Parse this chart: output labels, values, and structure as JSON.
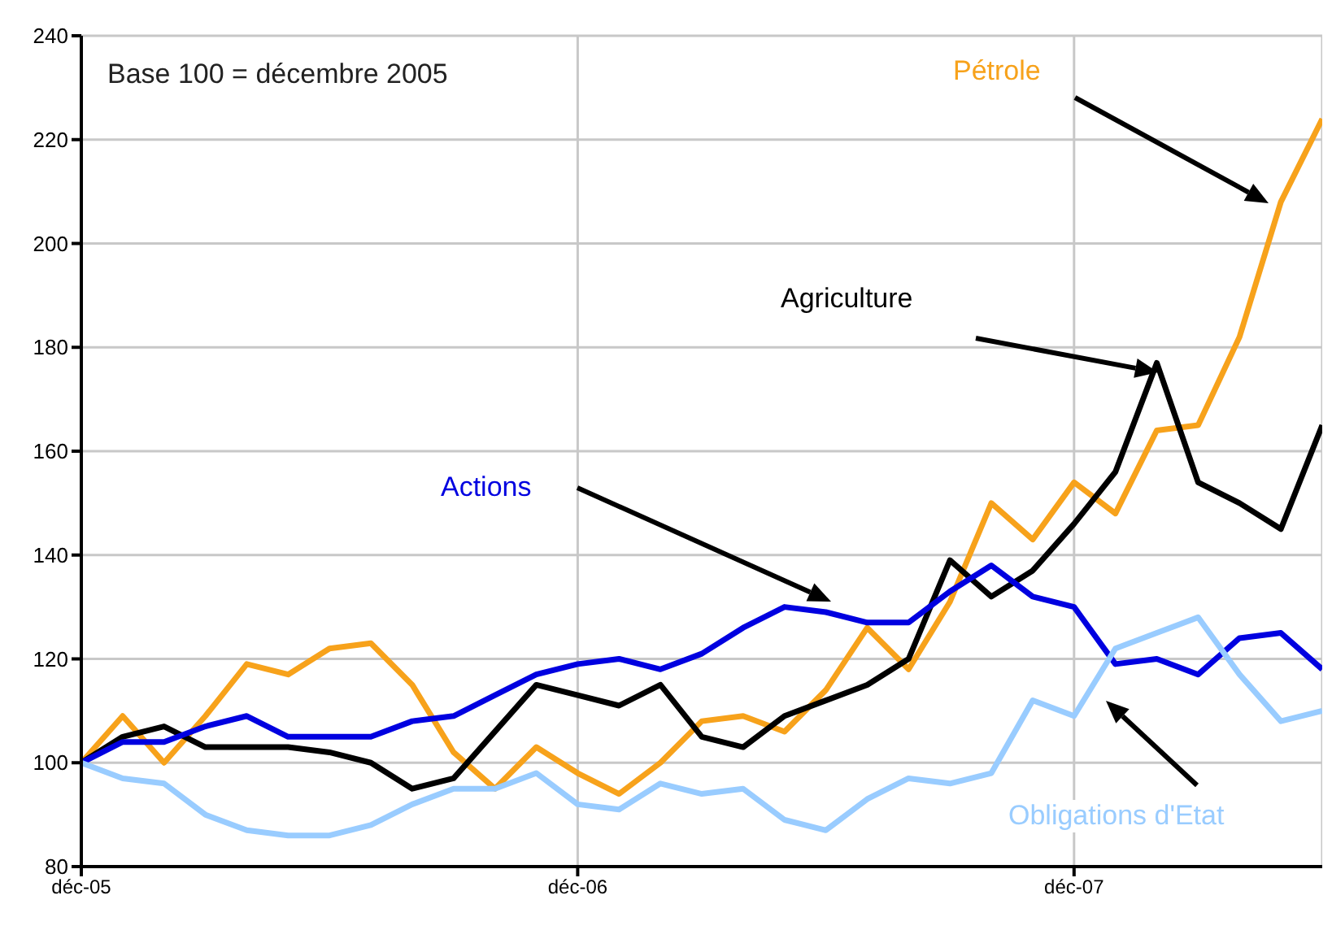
{
  "chart_data": {
    "type": "line",
    "x": [
      "2005-12",
      "2006-01",
      "2006-02",
      "2006-03",
      "2006-04",
      "2006-05",
      "2006-06",
      "2006-07",
      "2006-08",
      "2006-09",
      "2006-10",
      "2006-11",
      "2006-12",
      "2007-01",
      "2007-02",
      "2007-03",
      "2007-04",
      "2007-05",
      "2007-06",
      "2007-07",
      "2007-08",
      "2007-09",
      "2007-10",
      "2007-11",
      "2007-12",
      "2008-01",
      "2008-02",
      "2008-03",
      "2008-04",
      "2008-05",
      "2008-06"
    ],
    "series": [
      {
        "name": "Pétrole",
        "color": "#f7a21b",
        "values": [
          100,
          109,
          100,
          109,
          119,
          117,
          122,
          123,
          115,
          102,
          95,
          103,
          98,
          94,
          100,
          108,
          109,
          106,
          114,
          126,
          118,
          131,
          150,
          143,
          154,
          148,
          164,
          165,
          182,
          208,
          224
        ]
      },
      {
        "name": "Agriculture",
        "color": "#000000",
        "values": [
          100,
          105,
          107,
          103,
          103,
          103,
          102,
          100,
          95,
          97,
          106,
          115,
          113,
          111,
          115,
          105,
          103,
          109,
          112,
          115,
          120,
          139,
          132,
          137,
          146,
          156,
          177,
          154,
          150,
          145,
          165
        ]
      },
      {
        "name": "Actions",
        "color": "#0000e0",
        "values": [
          100,
          104,
          104,
          107,
          109,
          105,
          105,
          105,
          108,
          109,
          113,
          117,
          119,
          120,
          118,
          121,
          126,
          130,
          129,
          127,
          127,
          133,
          138,
          132,
          130,
          119,
          120,
          117,
          124,
          125,
          118
        ]
      },
      {
        "name": "Obligations d'Etat",
        "color": "#99ccff",
        "values": [
          100,
          97,
          96,
          90,
          87,
          86,
          86,
          88,
          92,
          95,
          95,
          98,
          92,
          91,
          96,
          94,
          95,
          89,
          87,
          93,
          97,
          96,
          98,
          112,
          109,
          122,
          125,
          128,
          117,
          108,
          110
        ]
      }
    ],
    "xlim": [
      "2005-12",
      "2008-06"
    ],
    "xticks": [
      {
        "value": "2005-12",
        "label": "déc-05"
      },
      {
        "value": "2006-12",
        "label": "déc-06"
      },
      {
        "value": "2007-12",
        "label": "déc-07"
      }
    ],
    "ylim": [
      80,
      240
    ],
    "yticks": [
      80,
      100,
      120,
      140,
      160,
      180,
      200,
      220,
      240
    ],
    "grid": true,
    "annotations": [
      "Base 100 = décembre 2005"
    ]
  }
}
